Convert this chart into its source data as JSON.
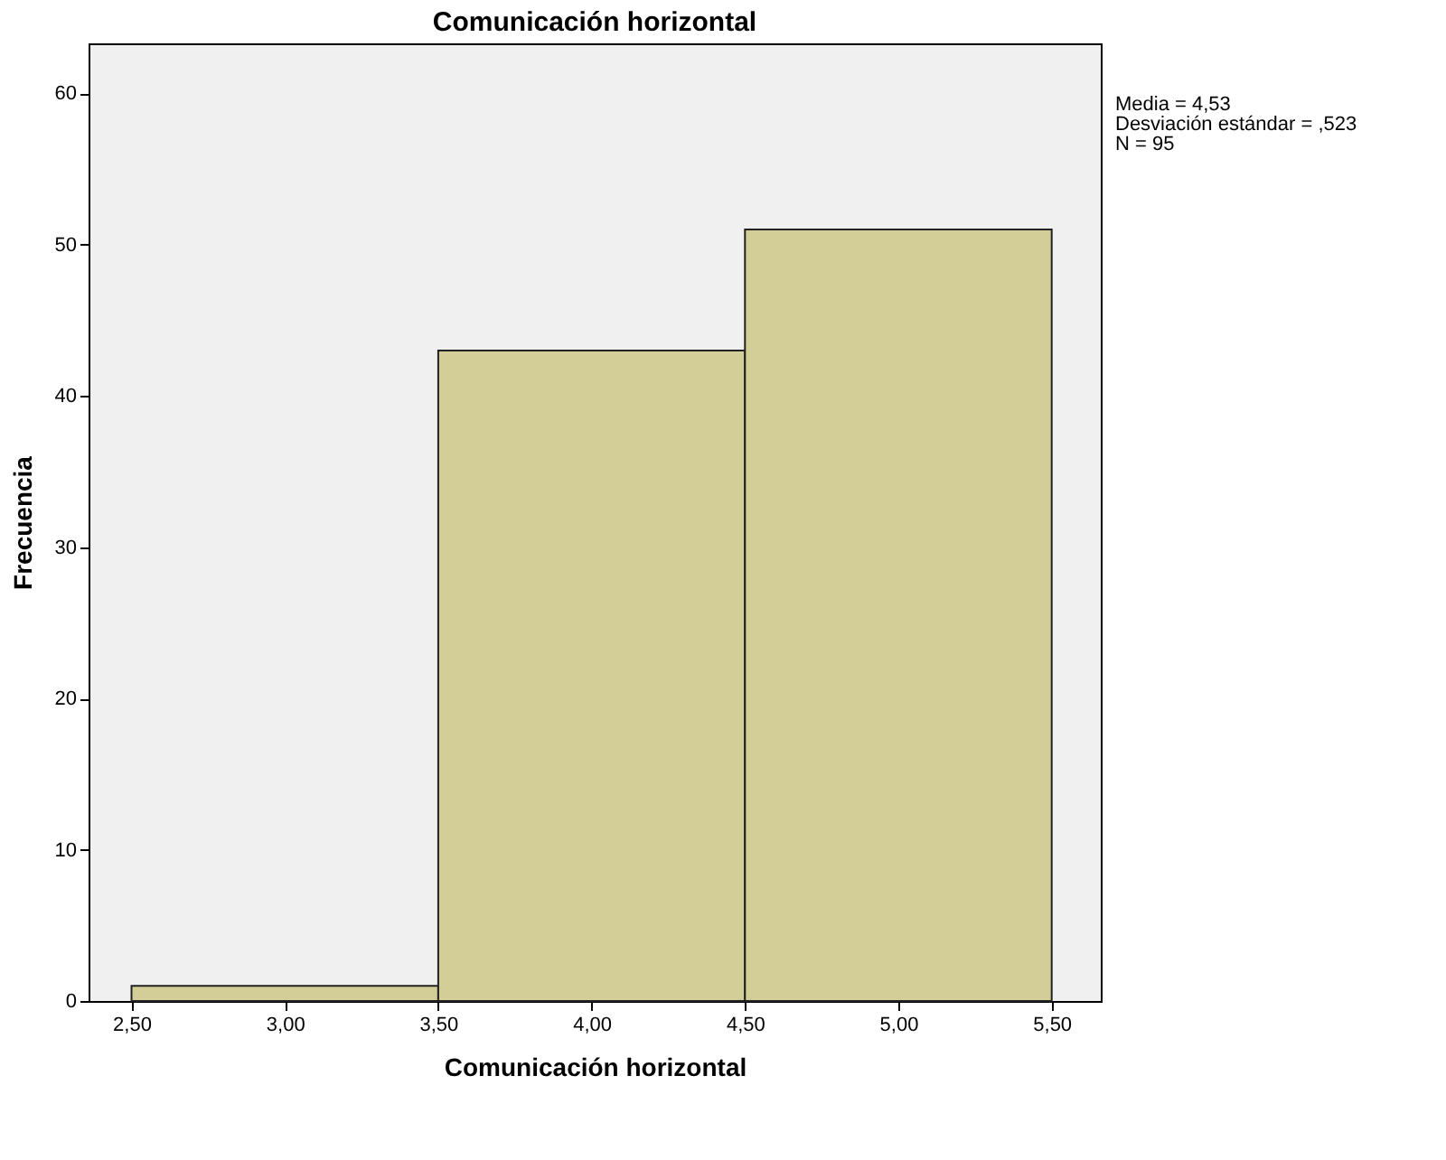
{
  "chart_data": {
    "type": "histogram",
    "title": "Comunicación horizontal",
    "xlabel": "Comunicación horizontal",
    "ylabel": "Frecuencia",
    "bins": [
      2.5,
      3.5,
      4.5,
      5.5
    ],
    "values": [
      1,
      43,
      51
    ],
    "color": "#d3ce97",
    "xlim": [
      2.36,
      5.66
    ],
    "xticks": [
      {
        "value": 2.5,
        "label": "2,50"
      },
      {
        "value": 3.0,
        "label": "3,00"
      },
      {
        "value": 3.5,
        "label": "3,50"
      },
      {
        "value": 4.0,
        "label": "4,00"
      },
      {
        "value": 4.5,
        "label": "4,50"
      },
      {
        "value": 5.0,
        "label": "5,00"
      },
      {
        "value": 5.5,
        "label": "5,50"
      }
    ],
    "ylim": [
      0,
      63.3
    ],
    "yticks": [
      0,
      10,
      20,
      30,
      40,
      50,
      60
    ],
    "annotations": [
      "Media = 4,53",
      "Desviación estándar = ,523",
      "N = 95"
    ],
    "grid": false
  }
}
